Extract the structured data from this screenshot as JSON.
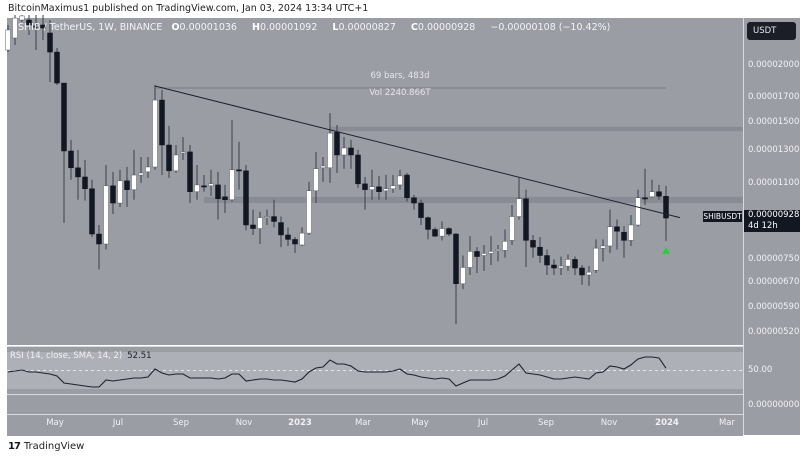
{
  "attribution": "BitcoinMaximus1 published on TradingView.com, Jan 03, 2024 13:34 UTC+1",
  "legend": {
    "symbol": "SHIB / TetherUS, 1W, BINANCE",
    "open_key": "O",
    "open": "0.00001036",
    "high_key": "H",
    "high": "0.00001092",
    "low_key": "L",
    "low": "0.00000827",
    "close_key": "C",
    "close": "0.00000928",
    "change": "−0.00000108 (−10.42%)"
  },
  "measure": {
    "bars": "69 bars, 483d",
    "volume": "Vol 2240.866T"
  },
  "price_axis": {
    "currency_button": "USDT",
    "labels": [
      "0.00002000",
      "0.00001700",
      "0.00001500",
      "0.00001300",
      "0.00001100",
      "0.00000750",
      "0.00000670",
      "0.00000590",
      "0.00000520"
    ],
    "rsi_labels": [
      "50.00"
    ],
    "bottom_pane_label": "0.00000000"
  },
  "last_price": {
    "symbol": "SHIBUSDT",
    "price": "0.00000928",
    "countdown": "4d 12h"
  },
  "rsi": {
    "title": "RSI (14, close, SMA, 14, 2)",
    "value": "52.51"
  },
  "time_axis": [
    "May",
    "Jul",
    "Sep",
    "Nov",
    "2023",
    "Mar",
    "May",
    "Jul",
    "Sep",
    "Nov",
    "2024",
    "Mar"
  ],
  "footer": {
    "logo": "TV",
    "brand": "TradingView"
  },
  "colors": {
    "background": "#9b9da5",
    "up_candle": "#ffffff",
    "down_candle": "#131722",
    "wick": "#3a3e48",
    "zone": "#898c94",
    "trendline": "#1e2230",
    "rsi_line": "#1e2230",
    "marker": "#2ecc40"
  },
  "chart_data": {
    "type": "candlestick",
    "symbol": "SHIB / TetherUS",
    "interval": "1W",
    "price_scale": "log",
    "ohlc_format": [
      "open",
      "high",
      "low",
      "close"
    ],
    "candles": [
      [
        2.168e-05,
        2.46e-05,
        2.146e-05,
        2.399e-05
      ],
      [
        2.304e-05,
        2.588e-05,
        2.224e-05,
        2.548e-05
      ],
      [
        2.523e-05,
        2.588e-05,
        2.498e-05,
        2.575e-05
      ],
      [
        2.523e-05,
        2.588e-05,
        2.339e-05,
        2.46e-05
      ],
      [
        2.448e-05,
        2.588e-05,
        2.168e-05,
        2.442e-05
      ],
      [
        2.46e-05,
        2.588e-05,
        2.281e-05,
        2.423e-05
      ],
      [
        2.363e-05,
        2.523e-05,
        1.844e-05,
        2.146e-05
      ],
      [
        2.146e-05,
        2.19e-05,
        1.817e-05,
        1.835e-05
      ],
      [
        1.835e-05,
        1.835e-05,
        9.06e-06,
        1.302e-05
      ],
      [
        1.302e-05,
        1.377e-05,
        1.126e-05,
        1.196e-05
      ],
      [
        1.196e-05,
        1.309e-05,
        1.018e-05,
        1.142e-05
      ],
      [
        1.142e-05,
        1.245e-05,
        1.013e-05,
        1.076e-05
      ],
      [
        1.076e-05,
        1.126e-05,
        8.43e-06,
        8.56e-06
      ],
      [
        8.56e-06,
        8.96e-06,
        7.16e-06,
        8.14e-06
      ],
      [
        8.14e-06,
        1.213e-05,
        7.92e-06,
        1.092e-05
      ],
      [
        1.092e-05,
        1.172e-05,
        9.47e-06,
        1.001e-05
      ],
      [
        1.001e-05,
        1.184e-05,
        9.81e-06,
        1.12e-05
      ],
      [
        1.12e-05,
        1.201e-05,
        9.81e-06,
        1.071e-05
      ],
      [
        1.071e-05,
        1.309e-05,
        1.018e-05,
        1.153e-05
      ],
      [
        1.153e-05,
        1.263e-05,
        1.108e-05,
        1.165e-05
      ],
      [
        1.172e-05,
        1.263e-05,
        1.137e-05,
        1.201e-05
      ],
      [
        1.201e-05,
        1.817e-05,
        1.184e-05,
        1.684e-05
      ],
      [
        1.684e-05,
        1.772e-05,
        1.153e-05,
        1.342e-05
      ],
      [
        1.342e-05,
        1.478e-05,
        1.137e-05,
        1.178e-05
      ],
      [
        1.178e-05,
        1.342e-05,
        1.165e-05,
        1.276e-05
      ],
      [
        1.289e-05,
        1.397e-05,
        1.245e-05,
        1.296e-05
      ],
      [
        1.296e-05,
        1.342e-05,
        1.001e-05,
        1.06e-05
      ],
      [
        1.06e-05,
        1.213e-05,
        1.018e-05,
        1.097e-05
      ],
      [
        1.092e-05,
        1.153e-05,
        1.06e-05,
        1.09e-05
      ],
      [
        1.092e-05,
        1.184e-05,
        1.038e-05,
        1.103e-05
      ],
      [
        1.097e-05,
        1.172e-05,
        9.21e-06,
        1.023e-05
      ],
      [
        1.033e-05,
        1.097e-05,
        9.52e-06,
        1.018e-05
      ],
      [
        1.018e-05,
        1.523e-05,
        1.008e-05,
        1.184e-05
      ],
      [
        1.184e-05,
        1.363e-05,
        1.071e-05,
        1.178e-05
      ],
      [
        1.178e-05,
        1.213e-05,
        8.72e-06,
        8.96e-06
      ],
      [
        8.96e-06,
        9.68e-06,
        8.52e-06,
        8.8e-06
      ],
      [
        8.8e-06,
        9.58e-06,
        8.14e-06,
        9.3e-06
      ],
      [
        9.3e-06,
        9.68e-06,
        8.96e-06,
        9.35e-06
      ],
      [
        9.35e-06,
        1.018e-05,
        8.85e-06,
        9.12e-06
      ],
      [
        9.07e-06,
        9.35e-06,
        8.01e-06,
        8.52e-06
      ],
      [
        8.52e-06,
        8.85e-06,
        8.06e-06,
        8.33e-06
      ],
      [
        8.33e-06,
        8.43e-06,
        7.78e-06,
        8.14e-06
      ],
      [
        8.1e-06,
        8.85e-06,
        8.06e-06,
        8.6e-06
      ],
      [
        8.6e-06,
        1.114e-05,
        8.52e-06,
        1.065e-05
      ],
      [
        1.065e-05,
        1.296e-05,
        1.001e-05,
        1.19e-05
      ],
      [
        1.196e-05,
        1.263e-05,
        1.114e-05,
        1.207e-05
      ],
      [
        1.196e-05,
        1.577e-05,
        1.108e-05,
        1.425e-05
      ],
      [
        1.432e-05,
        1.485e-05,
        1.165e-05,
        1.276e-05
      ],
      [
        1.276e-05,
        1.397e-05,
        1.19e-05,
        1.322e-05
      ],
      [
        1.322e-05,
        1.377e-05,
        1.19e-05,
        1.276e-05
      ],
      [
        1.276e-05,
        1.309e-05,
        1.081e-05,
        1.103e-05
      ],
      [
        1.103e-05,
        1.142e-05,
        9.68e-06,
        1.071e-05
      ],
      [
        1.071e-05,
        1.184e-05,
        1.018e-05,
        1.087e-05
      ],
      [
        1.087e-05,
        1.148e-05,
        1.018e-05,
        1.06e-05
      ],
      [
        1.065e-05,
        1.153e-05,
        1.018e-05,
        1.076e-05
      ],
      [
        1.076e-05,
        1.153e-05,
        1.054e-05,
        1.092e-05
      ],
      [
        1.097e-05,
        1.184e-05,
        1.071e-05,
        1.148e-05
      ],
      [
        1.153e-05,
        1.165e-05,
        1.008e-05,
        1.028e-05
      ],
      [
        1.028e-05,
        1.043e-05,
        9.68e-06,
        1.001e-05
      ],
      [
        1.001e-05,
        1.018e-05,
        8.96e-06,
        9.3e-06
      ],
      [
        9.3e-06,
        9.35e-06,
        8.33e-06,
        8.76e-06
      ],
      [
        8.76e-06,
        8.85e-06,
        8.43e-06,
        8.47e-06
      ],
      [
        8.47e-06,
        9.12e-06,
        8.29e-06,
        8.8e-06
      ],
      [
        8.8e-06,
        8.85e-06,
        8.47e-06,
        8.56e-06
      ],
      [
        8.56e-06,
        8.6e-06,
        5.43e-06,
        6.66e-06
      ],
      [
        6.66e-06,
        7.68e-06,
        6.48e-06,
        7.23e-06
      ],
      [
        7.23e-06,
        8.47e-06,
        6.96e-06,
        7.84e-06
      ],
      [
        7.84e-06,
        8.01e-06,
        7.03e-06,
        7.64e-06
      ],
      [
        7.68e-06,
        8.1e-06,
        7.1e-06,
        7.76e-06
      ],
      [
        7.76e-06,
        8.47e-06,
        7.32e-06,
        7.84e-06
      ],
      [
        7.88e-06,
        8.1e-06,
        7.45e-06,
        7.92e-06
      ],
      [
        7.88e-06,
        8.76e-06,
        7.6e-06,
        8.25e-06
      ],
      [
        8.29e-06,
        9.91e-06,
        8.1e-06,
        9.35e-06
      ],
      [
        9.35e-06,
        1.137e-05,
        9.21e-06,
        1.023e-05
      ],
      [
        1.023e-05,
        1.071e-05,
        7.25e-06,
        8.29e-06
      ],
      [
        8.29e-06,
        8.52e-06,
        7.6e-06,
        8.01e-06
      ],
      [
        8.01e-06,
        8.43e-06,
        7.4e-06,
        7.68e-06
      ],
      [
        7.68e-06,
        7.92e-06,
        6.96e-06,
        7.32e-06
      ],
      [
        7.32e-06,
        7.53e-06,
        6.96e-06,
        7.21e-06
      ],
      [
        7.21e-06,
        7.64e-06,
        6.96e-06,
        7.28e-06
      ],
      [
        7.28e-06,
        7.72e-06,
        7.1e-06,
        7.53e-06
      ],
      [
        7.53e-06,
        7.64e-06,
        6.96e-06,
        7.21e-06
      ],
      [
        7.21e-06,
        7.32e-06,
        6.62e-06,
        6.96e-06
      ],
      [
        6.96e-06,
        7.28e-06,
        6.59e-06,
        7.06e-06
      ],
      [
        7.13e-06,
        8.33e-06,
        7.03e-06,
        7.97e-06
      ],
      [
        7.97e-06,
        8.33e-06,
        7.45e-06,
        8.06e-06
      ],
      [
        8.06e-06,
        9.68e-06,
        7.78e-06,
        8.88e-06
      ],
      [
        8.88e-06,
        9.21e-06,
        7.92e-06,
        8.68e-06
      ],
      [
        8.64e-06,
        8.91e-06,
        7.6e-06,
        8.29e-06
      ],
      [
        8.29e-06,
        9.42e-06,
        8.06e-06,
        8.96e-06
      ],
      [
        8.96e-06,
        1.071e-05,
        8.9e-06,
        1.028e-05
      ],
      [
        1.028e-05,
        1.19e-05,
        9.91e-06,
        1.023e-05
      ],
      [
        1.033e-05,
        1.126e-05,
        1.028e-05,
        1.06e-05
      ],
      [
        1.06e-05,
        1.097e-05,
        1.018e-05,
        1.036e-05
      ],
      [
        1.036e-05,
        1.092e-05,
        8.27e-06,
        9.28e-06
      ]
    ],
    "rsi_values": [
      48.4,
      49.5,
      50.5,
      48.4,
      48.4,
      47.3,
      46.2,
      44.1,
      36.5,
      35.4,
      34.3,
      33.2,
      32.2,
      32.2,
      39.7,
      38.6,
      39.7,
      40.8,
      41.9,
      41.9,
      43.0,
      51.6,
      47.3,
      45.1,
      46.2,
      46.2,
      41.9,
      41.9,
      41.9,
      41.9,
      40.8,
      41.9,
      46.2,
      46.2,
      38.6,
      39.7,
      40.8,
      40.8,
      39.7,
      39.7,
      38.6,
      37.6,
      40.8,
      48.4,
      52.7,
      53.8,
      61.4,
      57.0,
      57.0,
      54.9,
      49.5,
      48.4,
      48.4,
      48.4,
      48.4,
      49.5,
      51.6,
      46.2,
      45.1,
      43.0,
      41.9,
      40.8,
      41.9,
      40.8,
      33.2,
      36.5,
      39.7,
      39.7,
      39.7,
      39.7,
      40.8,
      44.1,
      50.5,
      57.0,
      47.3,
      46.2,
      45.1,
      43.0,
      40.8,
      40.8,
      41.9,
      43.0,
      41.9,
      40.8,
      47.3,
      48.4,
      54.9,
      53.8,
      51.6,
      56.0,
      62.4,
      64.6,
      64.6,
      63.5,
      52.51
    ],
    "rsi_bands": {
      "upper": 70,
      "middle": 50,
      "lower": 30
    },
    "drawings": {
      "trendline": {
        "from": {
          "date": "2022-08-08",
          "price": 1.808e-05
        },
        "to": {
          "date": "2024-01-15",
          "price": 9.3e-06
        }
      },
      "horizontal_line": {
        "price": 1.79e-05,
        "from_date": "2022-08-08",
        "to_date": "2024-01-01"
      },
      "zones": [
        {
          "low": 1.439e-05,
          "high": 1.471e-05,
          "from_date": "2023-01-30"
        },
        {
          "low": 1.001e-05,
          "high": 1.033e-05,
          "from_date": "2022-09-26"
        }
      ],
      "marker": {
        "shape": "triangle-up",
        "date": "2024-01-01",
        "price": 7.86e-06
      }
    }
  }
}
